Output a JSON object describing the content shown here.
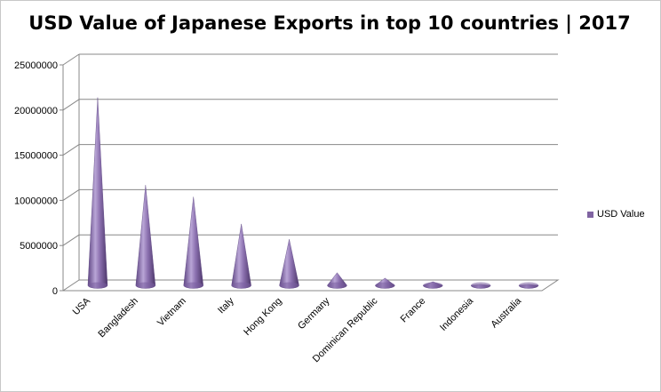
{
  "chart_data": {
    "type": "bar",
    "style": "3d-cone",
    "title": "USD Value of Japanese Exports in top 10 countries | 2017",
    "categories": [
      "USA",
      "Bangladesh",
      "Vietnam",
      "Italy",
      "Hong Kong",
      "Germany",
      "Dominican Republic",
      "France",
      "Indonesia",
      "Australia"
    ],
    "series": [
      {
        "name": "USD Value",
        "values": [
          20800000,
          11100000,
          9800000,
          6800000,
          5100000,
          1400000,
          800000,
          400000,
          100000,
          100000
        ],
        "color": "#8064a2"
      }
    ],
    "ylim": [
      0,
      25000000
    ],
    "yticks": [
      "0",
      "5000000",
      "10000000",
      "15000000",
      "20000000",
      "25000000"
    ],
    "grid": true,
    "legend": "right"
  }
}
